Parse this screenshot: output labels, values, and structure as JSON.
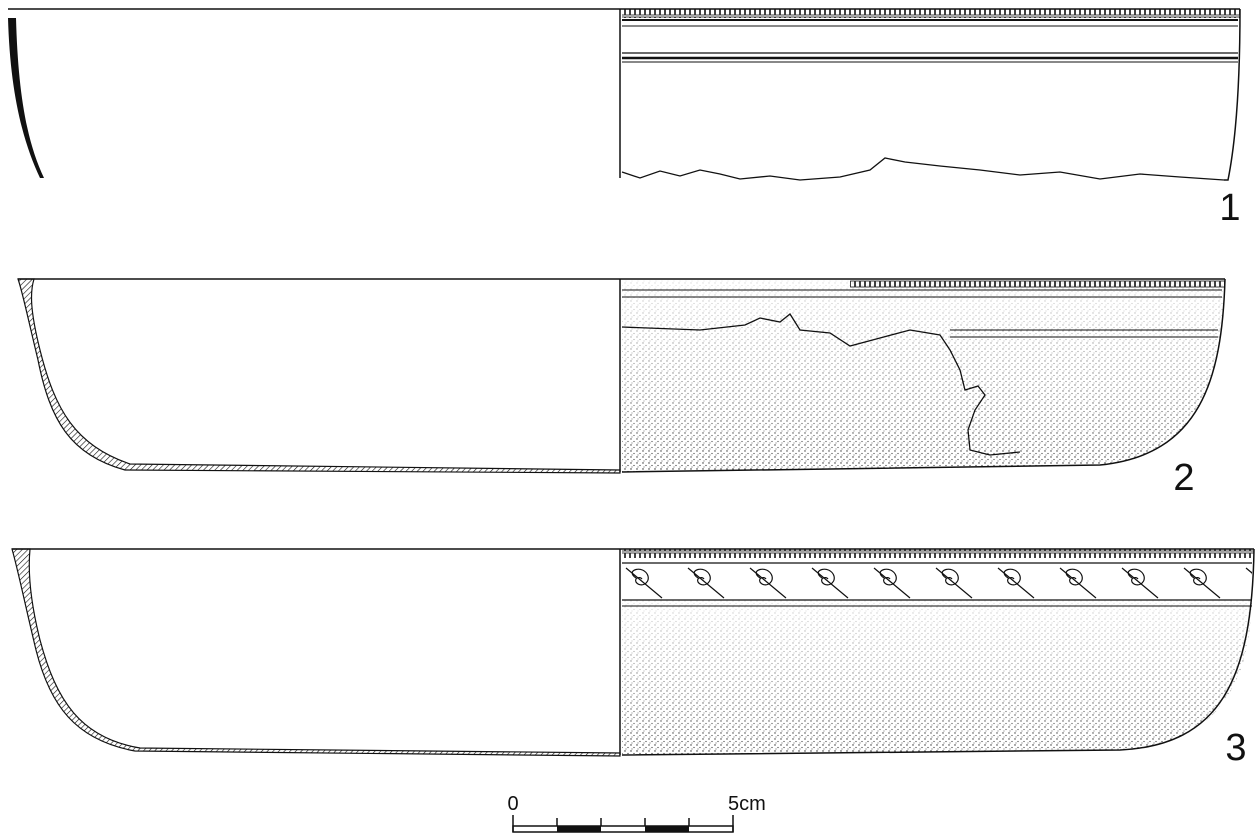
{
  "vessels": [
    {
      "label": "1"
    },
    {
      "label": "2"
    },
    {
      "label": "3"
    }
  ],
  "scale": {
    "start": "0",
    "end": "5cm"
  }
}
